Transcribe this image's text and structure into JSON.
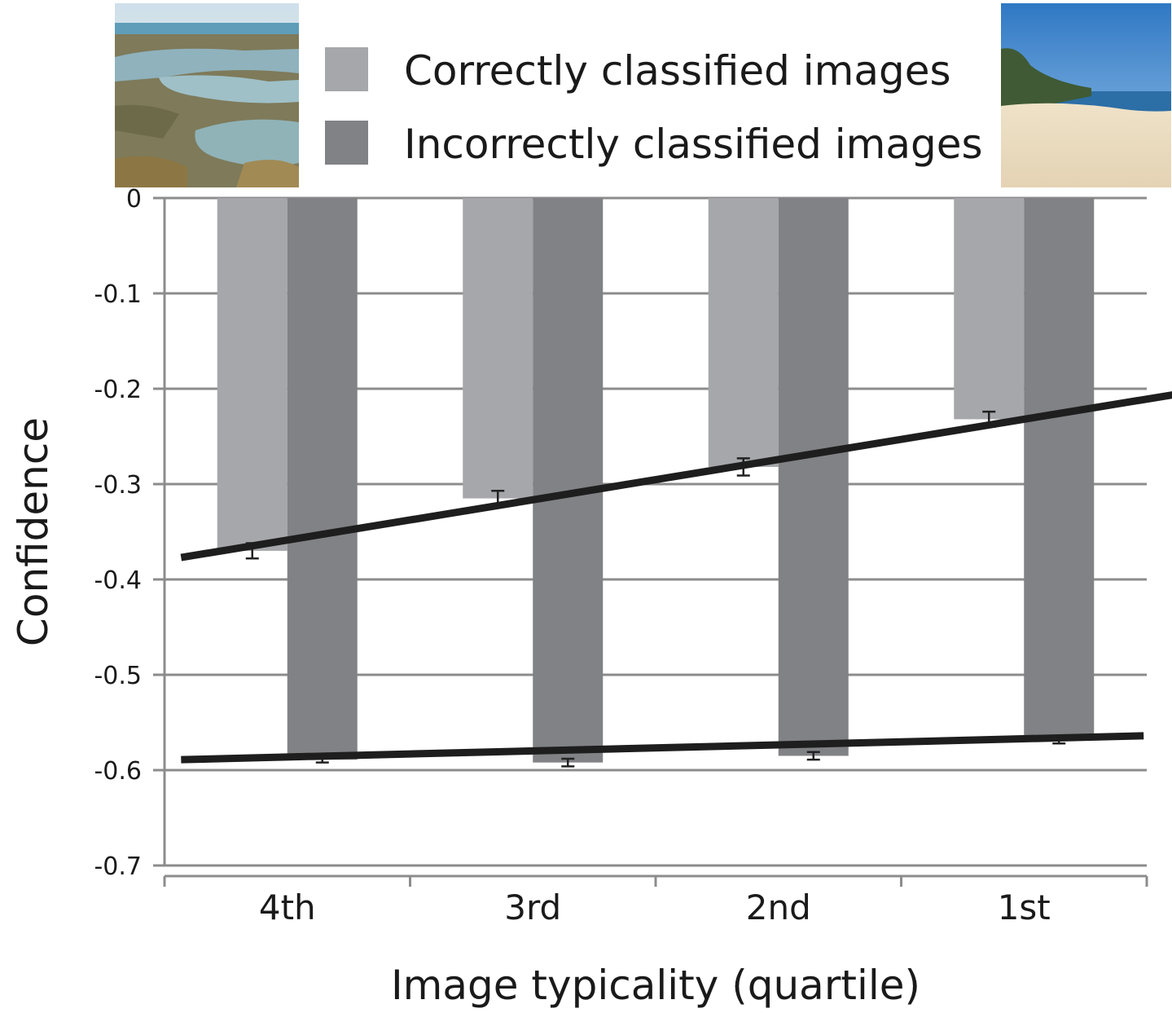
{
  "chart_data": {
    "type": "bar",
    "xlabel": "Image typicality (quartile)",
    "ylabel": "Confidence",
    "ylim": [
      -0.7,
      0
    ],
    "yticks": [
      0,
      -0.1,
      -0.2,
      -0.3,
      -0.4,
      -0.5,
      -0.6,
      -0.7
    ],
    "ytick_labels": [
      "0",
      "-0.1",
      "-0.2",
      "-0.3",
      "-0.4",
      "-0.5",
      "-0.6",
      "-0.7"
    ],
    "grid": true,
    "legend_position": "top",
    "categories": [
      "4th",
      "3rd",
      "2nd",
      "1st"
    ],
    "series": [
      {
        "name": "Correctly classified images",
        "color": "#a6a7aa",
        "values": [
          -0.37,
          -0.315,
          -0.282,
          -0.232
        ],
        "errors": [
          0.008,
          0.008,
          0.009,
          0.008
        ]
      },
      {
        "name": "Incorrectly classified images",
        "color": "#818285",
        "values": [
          -0.589,
          -0.592,
          -0.585,
          -0.568
        ],
        "errors": [
          0.003,
          0.004,
          0.004,
          0.004
        ]
      }
    ],
    "trend_lines": [
      {
        "series": "Correctly classified images",
        "x_start": -0.29,
        "y_start": -0.377,
        "x_end": 3.9,
        "y_end": -0.2
      },
      {
        "series": "Incorrectly classified images",
        "x_start": -0.29,
        "y_start": -0.589,
        "x_end": 3.63,
        "y_end": -0.564
      }
    ],
    "images": [
      {
        "name": "atypical-beach-photo",
        "description": "rocky shoreline with tide pools"
      },
      {
        "name": "typical-beach-photo",
        "description": "sandy beach with blue sea and sky"
      }
    ]
  }
}
